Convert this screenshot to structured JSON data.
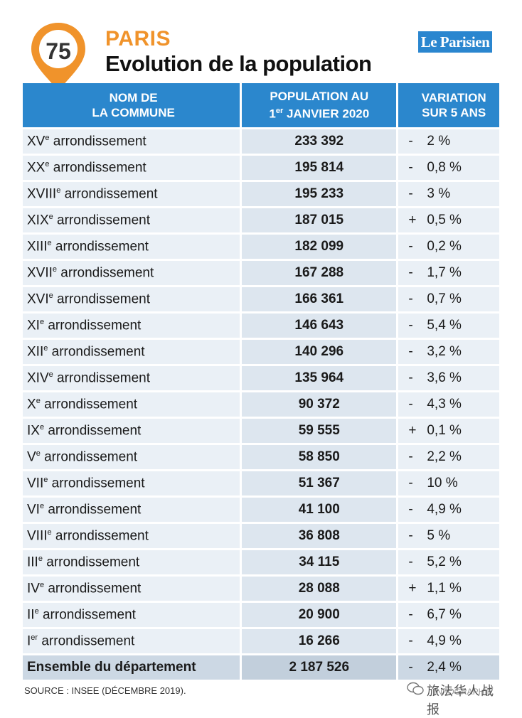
{
  "header": {
    "badge": "75",
    "city": "PARIS",
    "title": "Evolution de la population",
    "logo": "Le Parisien"
  },
  "table": {
    "columns": {
      "name_line1": "NOM DE",
      "name_line2": "LA COMMUNE",
      "pop_line1": "POPULATION AU",
      "pop_day": "1",
      "pop_day_sup": "er",
      "pop_line2_rest": " JANVIER 2020",
      "var_line1": "VARIATION",
      "var_line2": "SUR 5 ANS"
    },
    "rows": [
      {
        "num": "XV",
        "sup": "e",
        "suffix": " arrondissement",
        "population": "233 392",
        "sign": "-",
        "variation": "2 %"
      },
      {
        "num": "XX",
        "sup": "e",
        "suffix": " arrondissement",
        "population": "195 814",
        "sign": "-",
        "variation": "0,8 %"
      },
      {
        "num": "XVIII",
        "sup": "e",
        "suffix": " arrondissement",
        "population": "195 233",
        "sign": "-",
        "variation": "3 %"
      },
      {
        "num": "XIX",
        "sup": "e",
        "suffix": " arrondissement",
        "population": "187 015",
        "sign": "+",
        "variation": "0,5 %"
      },
      {
        "num": "XIII",
        "sup": "e",
        "suffix": " arrondissement",
        "population": "182 099",
        "sign": "-",
        "variation": "0,2 %"
      },
      {
        "num": "XVII",
        "sup": "e",
        "suffix": " arrondissement",
        "population": "167 288",
        "sign": "-",
        "variation": "1,7 %"
      },
      {
        "num": "XVI",
        "sup": "e",
        "suffix": " arrondissement",
        "population": "166 361",
        "sign": "-",
        "variation": "0,7 %"
      },
      {
        "num": "XI",
        "sup": "e",
        "suffix": " arrondissement",
        "population": "146 643",
        "sign": "-",
        "variation": "5,4 %"
      },
      {
        "num": "XII",
        "sup": "e",
        "suffix": " arrondissement",
        "population": "140 296",
        "sign": "-",
        "variation": "3,2 %"
      },
      {
        "num": "XIV",
        "sup": "e",
        "suffix": " arrondissement",
        "population": "135 964",
        "sign": "-",
        "variation": "3,6 %"
      },
      {
        "num": "X",
        "sup": "e",
        "suffix": " arrondissement",
        "population": "90 372",
        "sign": "-",
        "variation": "4,3 %"
      },
      {
        "num": "IX",
        "sup": "e",
        "suffix": " arrondissement",
        "population": "59 555",
        "sign": "+",
        "variation": "0,1 %"
      },
      {
        "num": "V",
        "sup": "e",
        "suffix": " arrondissement",
        "population": "58 850",
        "sign": "-",
        "variation": "2,2 %"
      },
      {
        "num": "VII",
        "sup": "e",
        "suffix": " arrondissement",
        "population": "51 367",
        "sign": "-",
        "variation": "10 %"
      },
      {
        "num": "VI",
        "sup": "e",
        "suffix": " arrondissement",
        "population": "41 100",
        "sign": "-",
        "variation": "4,9 %"
      },
      {
        "num": "VIII",
        "sup": "e",
        "suffix": " arrondissement",
        "population": "36 808",
        "sign": "-",
        "variation": "5 %"
      },
      {
        "num": "III",
        "sup": "e",
        "suffix": " arrondissement",
        "population": "34 115",
        "sign": "-",
        "variation": "5,2 %"
      },
      {
        "num": "IV",
        "sup": "e",
        "suffix": " arrondissement",
        "population": "28 088",
        "sign": "+",
        "variation": "1,1 %"
      },
      {
        "num": "II",
        "sup": "e",
        "suffix": " arrondissement",
        "population": "20 900",
        "sign": "-",
        "variation": "6,7 %"
      },
      {
        "num": "I",
        "sup": "er",
        "suffix": " arrondissement",
        "population": "16 266",
        "sign": "-",
        "variation": "4,9 %"
      }
    ],
    "total": {
      "name": "Ensemble du département",
      "population": "2 187 526",
      "sign": "-",
      "variation": "2,4 %"
    }
  },
  "footer": {
    "source": "SOURCE : INSEE (DÉCEMBRE 2019).",
    "credit": "INFOGRAPHIE",
    "watermark": "旅法华人战报"
  },
  "colors": {
    "accent": "#f0932b",
    "header_blue": "#2b87cd",
    "logo_blue": "#2a86cf"
  }
}
